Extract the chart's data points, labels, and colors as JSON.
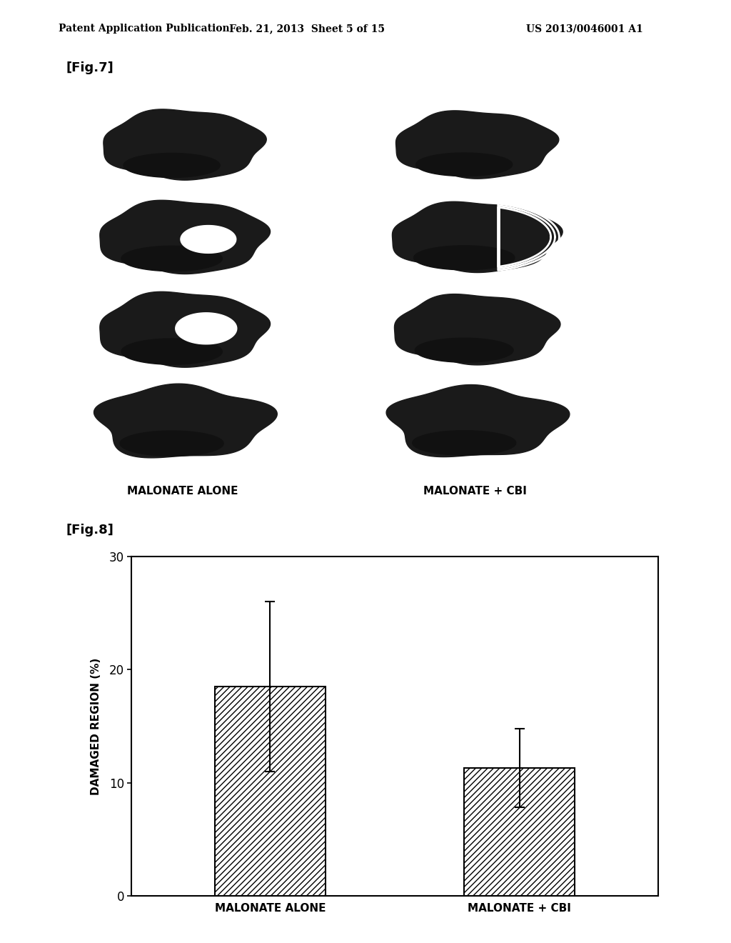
{
  "header_left": "Patent Application Publication",
  "header_mid": "Feb. 21, 2013  Sheet 5 of 15",
  "header_right": "US 2013/0046001 A1",
  "fig7_label": "[Fig.7]",
  "fig8_label": "[Fig.8]",
  "col1_label": "MALONATE ALONE",
  "col2_label": "MALONATE + CBI",
  "bar_values": [
    18.5,
    11.3
  ],
  "bar_errors": [
    7.5,
    3.5
  ],
  "bar_categories": [
    "MALONATE ALONE",
    "MALONATE + CBI"
  ],
  "ylabel": "DAMAGED REGION (%)",
  "ylim": [
    0,
    30
  ],
  "yticks": [
    0,
    10,
    20,
    30
  ],
  "background_color": "#ffffff",
  "bar_color": "#ffffff",
  "hatch_pattern": "////",
  "edge_color": "#000000"
}
